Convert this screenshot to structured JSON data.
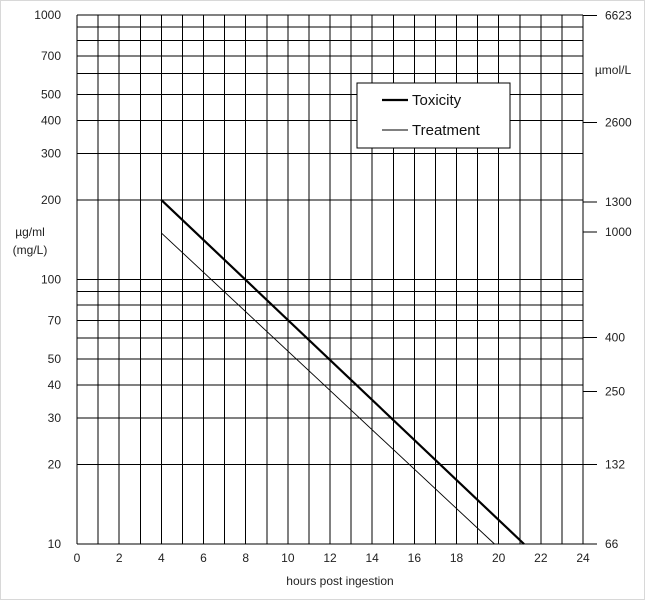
{
  "chart_data": {
    "type": "line",
    "title": "",
    "xlabel": "hours post ingestion",
    "ylabel_left": [
      "µg/ml",
      "(mg/L)"
    ],
    "ylabel_right": "µmol/L",
    "xlim": [
      0,
      24
    ],
    "ylim": [
      10,
      1000
    ],
    "yscale": "log",
    "grid": true,
    "legend_position": "top-right",
    "x_ticks": [
      0,
      2,
      4,
      6,
      8,
      10,
      12,
      14,
      16,
      18,
      20,
      22,
      24
    ],
    "x_tick_labels": [
      "0",
      "2",
      "4",
      "6",
      "8",
      "10",
      "12",
      "14",
      "16",
      "18",
      "20",
      "22",
      "24"
    ],
    "y_ticks_left": [
      10,
      20,
      30,
      40,
      50,
      70,
      100,
      200,
      300,
      400,
      500,
      700,
      1000
    ],
    "y_tick_labels_left": [
      "10",
      "20",
      "30",
      "40",
      "50",
      "70",
      "100",
      "200",
      "300",
      "400",
      "500",
      "700",
      "1000"
    ],
    "y_ticks_right_at": [
      10,
      20,
      37.75,
      60.4,
      151,
      196.3,
      392.6,
      996
    ],
    "y_tick_labels_right": [
      "66",
      "132",
      "250",
      "400",
      "1000",
      "1300",
      "2600",
      "6623"
    ],
    "y_minor_gridlines": [
      60,
      80,
      90,
      600,
      800,
      900
    ],
    "series": [
      {
        "name": "Toxicity",
        "x": [
          4,
          21.2
        ],
        "y": [
          200,
          10
        ],
        "line_width": 2.2,
        "color": "#000000"
      },
      {
        "name": "Treatment",
        "x": [
          4,
          19.8
        ],
        "y": [
          150,
          10
        ],
        "line_width": 0.9,
        "color": "#000000"
      }
    ]
  }
}
